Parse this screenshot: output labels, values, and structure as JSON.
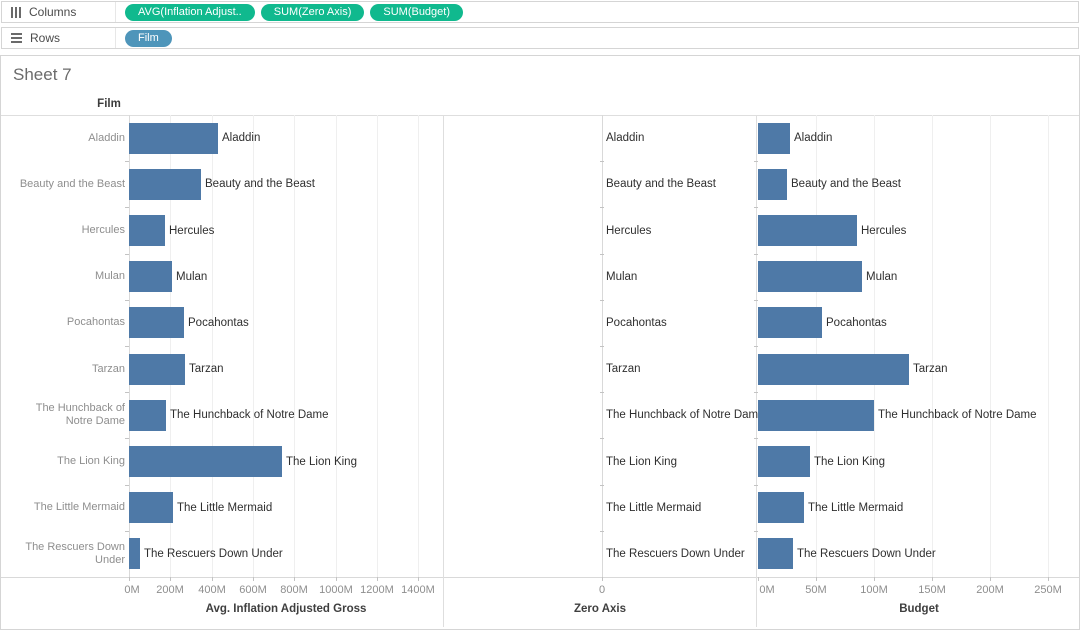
{
  "shelves": {
    "columns": {
      "label": "Columns",
      "pills": [
        {
          "label": "AVG(Inflation Adjust..",
          "color": "#10b98e"
        },
        {
          "label": "SUM(Zero Axis)",
          "color": "#10b98e"
        },
        {
          "label": "SUM(Budget)",
          "color": "#10b98e"
        }
      ]
    },
    "rows": {
      "label": "Rows",
      "pills": [
        {
          "label": "Film",
          "color": "#4e95ba"
        }
      ]
    }
  },
  "sheet": {
    "title": "Sheet 7",
    "row_field_label": "Film"
  },
  "colors": {
    "bar": "#4e79a7",
    "pill_green": "#10b98e",
    "pill_blue": "#4e95ba"
  },
  "chart_data": [
    {
      "type": "bar",
      "orientation": "horizontal",
      "title": "Avg. Inflation Adjusted Gross",
      "categories": [
        "Aladdin",
        "Beauty and the Beast",
        "Hercules",
        "Mulan",
        "Pocahontas",
        "Tarzan",
        "The Hunchback of Notre Dame",
        "The Lion King",
        "The Little Mermaid",
        "The Rescuers Down Under"
      ],
      "values": [
        430,
        350,
        175,
        210,
        265,
        270,
        180,
        740,
        215,
        55
      ],
      "unit": "M",
      "xlabel": "Avg. Inflation Adjusted Gross",
      "xlim": [
        0,
        1515
      ],
      "xticks": [
        0,
        200,
        400,
        600,
        800,
        1000,
        1200,
        1400
      ],
      "xtick_suffix": "M",
      "grid": true,
      "bar_labels": [
        "Aladdin",
        "Beauty and the Beast",
        "Hercules",
        "Mulan",
        "Pocahontas",
        "Tarzan",
        "The Hunchback of Notre Dame",
        "The Lion King",
        "The Little Mermaid",
        "The Rescuers Down Under"
      ]
    },
    {
      "type": "bar",
      "orientation": "horizontal",
      "title": "Zero Axis",
      "categories": [
        "Aladdin",
        "Beauty and the Beast",
        "Hercules",
        "Mulan",
        "Pocahontas",
        "Tarzan",
        "The Hunchback of Notre Dame",
        "The Lion King",
        "The Little Mermaid",
        "The Rescuers Down Under"
      ],
      "values": [
        0,
        0,
        0,
        0,
        0,
        0,
        0,
        0,
        0,
        0
      ],
      "xlabel": "Zero Axis",
      "xlim": [
        -1,
        1
      ],
      "xticks": [
        0
      ],
      "xtick_suffix": "",
      "grid": false,
      "bar_labels": [
        "Aladdin",
        "Beauty and the Beast",
        "Hercules",
        "Mulan",
        "Pocahontas",
        "Tarzan",
        "The Hunchback of Notre Dame",
        "The Lion King",
        "The Little Mermaid",
        "The Rescuers Down Under"
      ]
    },
    {
      "type": "bar",
      "orientation": "horizontal",
      "title": "Budget",
      "categories": [
        "Aladdin",
        "Beauty and the Beast",
        "Hercules",
        "Mulan",
        "Pocahontas",
        "Tarzan",
        "The Hunchback of Notre Dame",
        "The Lion King",
        "The Little Mermaid",
        "The Rescuers Down Under"
      ],
      "values": [
        28,
        25,
        85,
        90,
        55,
        130,
        100,
        45,
        40,
        30
      ],
      "unit": "M",
      "xlabel": "Budget",
      "xlim": [
        0,
        277
      ],
      "xticks": [
        0,
        50,
        100,
        150,
        200,
        250
      ],
      "xtick_suffix": "M",
      "grid": true,
      "bar_labels": [
        "Aladdin",
        "Beauty and the Beast",
        "Hercules",
        "Mulan",
        "Pocahontas",
        "Tarzan",
        "The Hunchback of Notre Dame",
        "The Lion King",
        "The Little Mermaid",
        "The Rescuers Down Under"
      ]
    }
  ]
}
